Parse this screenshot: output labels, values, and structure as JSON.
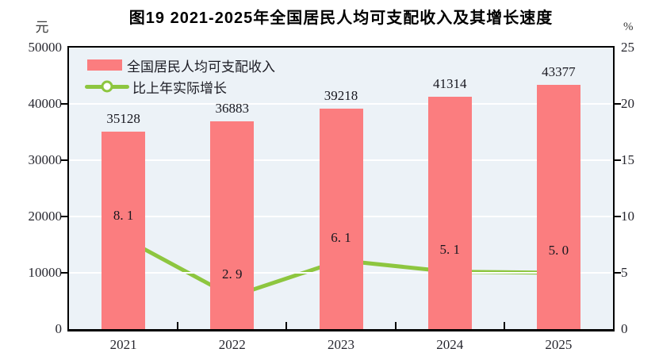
{
  "figure": {
    "title": "图19  2021-2025年全国居民人均可支配收入及其增长速度",
    "left_axis_unit": "元",
    "right_axis_unit": "%"
  },
  "chart_data": {
    "type": "bar+line",
    "categories": [
      "2021",
      "2022",
      "2023",
      "2024",
      "2025"
    ],
    "series": [
      {
        "name": "全国居民人均可支配收入",
        "type": "bar",
        "axis": "left",
        "values": [
          35128,
          36883,
          39218,
          41314,
          43377
        ],
        "value_labels": [
          "35128",
          "36883",
          "39218",
          "41314",
          "43377"
        ],
        "color": "#fb7d7f"
      },
      {
        "name": "比上年实际增长",
        "type": "line",
        "axis": "right",
        "values": [
          8.1,
          2.9,
          6.1,
          5.1,
          5.0
        ],
        "value_labels": [
          "8. 1",
          "2. 9",
          "6. 1",
          "5. 1",
          "5. 0"
        ],
        "color": "#8dc63f",
        "marker": "circle-white-fill"
      }
    ],
    "left_axis": {
      "unit": "元",
      "ylim": [
        0,
        50000
      ],
      "ticks": [
        50000,
        40000,
        30000,
        20000,
        10000,
        0
      ]
    },
    "right_axis": {
      "unit": "%",
      "ylim": [
        0,
        25
      ],
      "ticks": [
        25,
        20,
        15,
        10,
        5,
        0
      ]
    },
    "grid": true,
    "gridline_color": "#ffffff",
    "plot_background": "#ecf2f7",
    "legend_position": "top-left"
  }
}
